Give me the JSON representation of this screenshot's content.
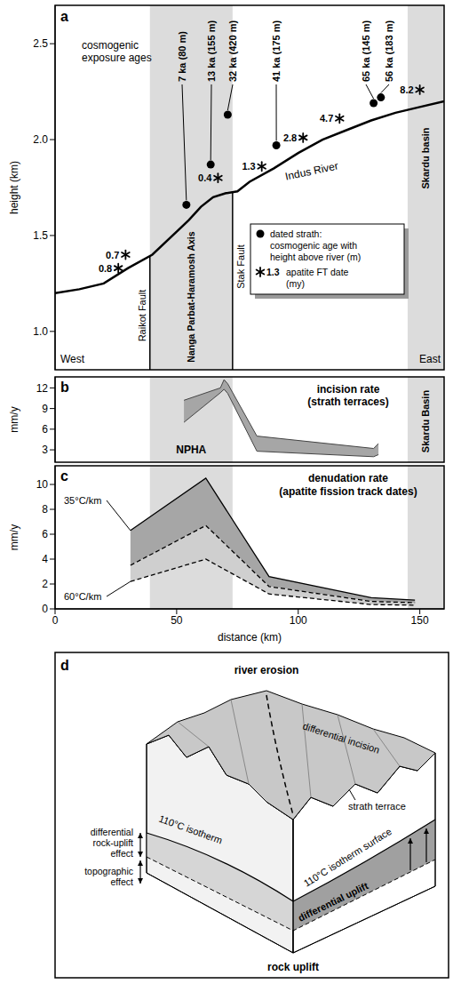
{
  "chart_data": [
    {
      "panel": "a",
      "type": "line",
      "y_label": "height (km)",
      "xlim": [
        0,
        160
      ],
      "ylim": [
        0.8,
        2.7
      ],
      "yticks": [
        {
          "value": 1.0,
          "label": "1.0"
        },
        {
          "value": 1.5,
          "label": "1.5"
        },
        {
          "value": 2.0,
          "label": "2.0"
        },
        {
          "value": 2.5,
          "label": "2.5"
        }
      ],
      "tick_labels": "y",
      "legend": "lower right",
      "series": [
        {
          "label": "Indus River",
          "type": "line",
          "color": "#000000",
          "line_style": "solid",
          "x": [
            0,
            10,
            20,
            30,
            40,
            50,
            55,
            60,
            65,
            70,
            75,
            80,
            90,
            100,
            110,
            120,
            130,
            140,
            150,
            160
          ],
          "values": [
            1.2,
            1.22,
            1.25,
            1.33,
            1.4,
            1.52,
            1.58,
            1.65,
            1.7,
            1.72,
            1.73,
            1.78,
            1.85,
            1.93,
            2.0,
            2.05,
            2.1,
            2.14,
            2.17,
            2.2
          ]
        },
        {
          "name": "dated strath: cosmogenic age with height above river (m)",
          "type": "scatter",
          "marker": "circle",
          "color": "#000000",
          "x": [
            54,
            64,
            71,
            91,
            131,
            134
          ],
          "values": [
            1.66,
            1.87,
            2.13,
            1.97,
            2.19,
            2.22
          ],
          "point_labels": [
            "7 ka (80 m)",
            "13 ka (155 m)",
            "32 ka (420 m)",
            "41 ka (175 m)",
            "65 ka (145 m)",
            "56 ka (183 m)"
          ]
        },
        {
          "name": "apatite FT date (my)",
          "type": "scatter",
          "marker": "asterisk",
          "color": "#000000",
          "x": [
            26,
            29,
            67,
            85,
            102,
            117,
            150
          ],
          "values": [
            1.33,
            1.4,
            1.8,
            1.86,
            2.01,
            2.11,
            2.26
          ],
          "point_labels": [
            0.8,
            0.7,
            0.4,
            1.3,
            2.8,
            4.7,
            8.2
          ],
          "legend_marker_label": "1.3"
        }
      ],
      "regions": [
        {
          "label": "Nanga Parbat-Haramosh Axis",
          "x": [
            39,
            73
          ]
        },
        {
          "label": "Skardu basin",
          "x": [
            145,
            160
          ]
        }
      ],
      "faults": [
        {
          "label": "Raikot Fault",
          "x": 39
        },
        {
          "label": "Stak Fault",
          "x": 73
        }
      ],
      "annotations": {
        "group": "cosmogenic exposure ages",
        "left": "West",
        "right": "East"
      }
    },
    {
      "panel": "b",
      "type": "area",
      "title": "incision rate (strath terraces)",
      "y_label": "mm/y",
      "xlim": [
        0,
        160
      ],
      "ylim": [
        1.2,
        13.6
      ],
      "yticks": [
        3,
        6,
        9,
        12
      ],
      "tick_labels": "y",
      "series": [
        {
          "color": "#a6a6a6",
          "x": [
            53,
            68,
            69.5,
            71,
            83,
            131,
            133
          ],
          "lower": [
            7,
            11.3,
            11.8,
            11.2,
            2.8,
            2.0,
            2.3
          ],
          "upper": [
            10.2,
            12.0,
            13.2,
            12.6,
            5.0,
            3.2,
            3.9
          ]
        }
      ],
      "regions": [
        {
          "label": "NPHA",
          "x": [
            39,
            73
          ]
        },
        {
          "label": "Skardu Basin",
          "x": [
            145,
            160
          ]
        }
      ]
    },
    {
      "panel": "c",
      "type": "area",
      "title": "denudation rate",
      "subtitle": "(apatite fission track dates)",
      "x_label": "distance (km)",
      "y_label": "mm/y",
      "xlim": [
        0,
        160
      ],
      "xticks": [
        0,
        50,
        100,
        150
      ],
      "ylim": [
        0,
        11.5
      ],
      "yticks": [
        0,
        2,
        4,
        6,
        8,
        10
      ],
      "series": [
        {
          "name": "35°C/km",
          "color": "#a6a6a6",
          "line_style": "solid",
          "x": [
            31,
            62,
            88,
            130,
            148
          ],
          "lower": [
            3.5,
            6.7,
            1.8,
            0.6,
            0.5
          ],
          "upper": [
            6.3,
            10.5,
            2.6,
            0.9,
            0.7
          ]
        },
        {
          "name": "60°C/km",
          "color": "#cfcfcf",
          "line_style": "dashed",
          "x": [
            31,
            62,
            88,
            130,
            148
          ],
          "lower": [
            2.2,
            4.0,
            1.2,
            0.35,
            0.3
          ],
          "upper": [
            3.5,
            6.7,
            1.8,
            0.6,
            0.5
          ]
        }
      ],
      "regions": [
        {
          "x": [
            39,
            73
          ]
        },
        {
          "x": [
            145,
            160
          ]
        }
      ]
    }
  ],
  "diagram": {
    "panel": "d",
    "texts": {
      "top": "river erosion",
      "incision": "differential incision",
      "terrace": "strath terrace",
      "isotherm": "110°C isotherm",
      "isotherm_surface": "110°C isotherm surface",
      "uplift": "differential uplift",
      "rock_uplift_effect": "differential rock-uplift effect",
      "topographic_effect": "topographic effect",
      "bottom": "rock uplift"
    }
  }
}
